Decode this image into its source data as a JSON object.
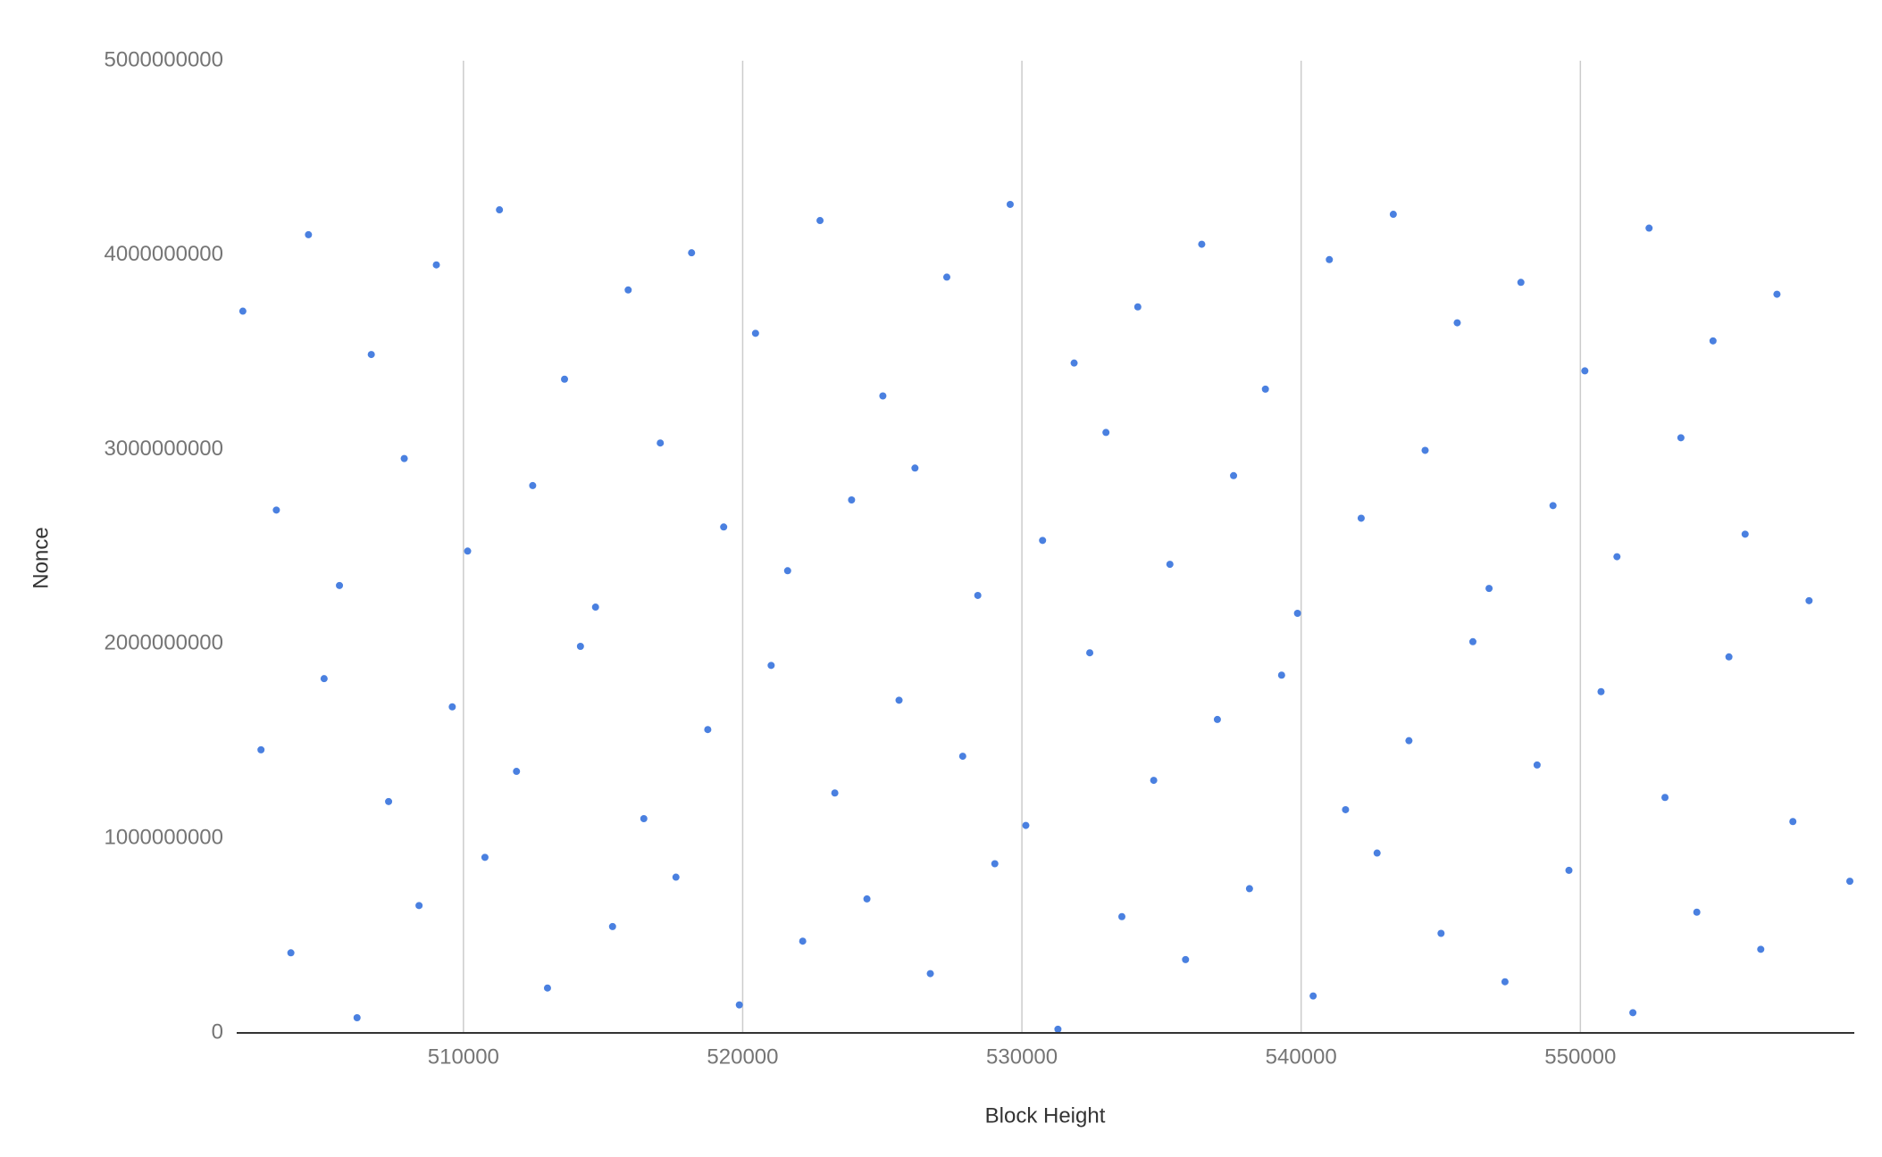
{
  "chart_data": {
    "type": "scatter",
    "x_label": "Block Height",
    "y_label": "Nonce",
    "xlim": [
      501880,
      559810
    ],
    "ylim": [
      0,
      5000000000
    ],
    "xticks": [
      510000,
      520000,
      530000,
      540000,
      550000
    ],
    "yticks": [
      0,
      1000000000,
      2000000000,
      3000000000,
      4000000000,
      5000000000
    ],
    "x_grid": true,
    "y_grid": false,
    "series": [
      {
        "color": "#4a80e0",
        "x": [
          502100,
          502750,
          503300,
          503820,
          504450,
          505010,
          505560,
          506190,
          506700,
          507320,
          507880,
          508410,
          509030,
          509600,
          510150,
          510770,
          511290,
          511900,
          512480,
          513010,
          513620,
          514190,
          514730,
          515340,
          515900,
          516460,
          517050,
          517610,
          518170,
          518750,
          519320,
          519880,
          520460,
          521020,
          521610,
          522150,
          522770,
          523300,
          523900,
          524450,
          525020,
          525600,
          526170,
          526720,
          527310,
          527880,
          528420,
          529030,
          529580,
          530140,
          530740,
          531290,
          531870,
          532430,
          533010,
          533580,
          534150,
          534720,
          535300,
          535860,
          536440,
          537000,
          537580,
          538150,
          538720,
          539300,
          539870,
          540430,
          541010,
          541590,
          542150,
          542720,
          543300,
          543860,
          544440,
          545010,
          545590,
          546150,
          546730,
          547300,
          547870,
          548450,
          549020,
          549590,
          550160,
          550740,
          551310,
          551880,
          552460,
          553030,
          553600,
          554170,
          554750,
          555320,
          555900,
          556460,
          557040,
          557610,
          558190,
          559650
        ],
        "values": [
          3712000000,
          1456000000,
          2689000000,
          412000000,
          4105000000,
          1822000000,
          2301000000,
          78000000,
          3489000000,
          1190000000,
          2954000000,
          655000000,
          3950000000,
          1677000000,
          2478000000,
          903000000,
          4233000000,
          1345000000,
          2815000000,
          231000000,
          3362000000,
          1988000000,
          2190000000,
          547000000,
          3821000000,
          1102000000,
          3034000000,
          801000000,
          4012000000,
          1560000000,
          2602000000,
          144000000,
          3598000000,
          1890000000,
          2377000000,
          472000000,
          4178000000,
          1234000000,
          2741000000,
          689000000,
          3276000000,
          1711000000,
          2905000000,
          305000000,
          3887000000,
          1423000000,
          2250000000,
          870000000,
          4261000000,
          1067000000,
          2533000000,
          19000000,
          3445000000,
          1955000000,
          3088000000,
          598000000,
          3734000000,
          1299000000,
          2410000000,
          377000000,
          4056000000,
          1612000000,
          2866000000,
          742000000,
          3311000000,
          1840000000,
          2158000000,
          190000000,
          3977000000,
          1148000000,
          2647000000,
          925000000,
          4210000000,
          1503000000,
          2996000000,
          512000000,
          3652000000,
          2012000000,
          2286000000,
          263000000,
          3860000000,
          1378000000,
          2712000000,
          836000000,
          3405000000,
          1755000000,
          2449000000,
          104000000,
          4139000000,
          1211000000,
          3061000000,
          621000000,
          3559000000,
          1934000000,
          2565000000,
          430000000,
          3799000000,
          1087000000,
          2223000000,
          780000000
        ]
      }
    ]
  }
}
